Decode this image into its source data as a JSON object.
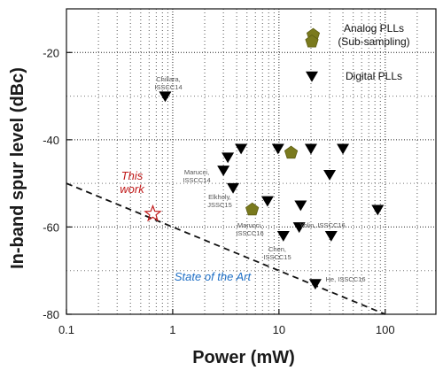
{
  "chart_data": {
    "type": "scatter",
    "title": "",
    "xlabel": "Power (mW)",
    "ylabel": "In-band spur level (dBc)",
    "x_scale": "log",
    "xlim": [
      0.1,
      300
    ],
    "ylim": [
      -80,
      -10
    ],
    "x_ticks": [
      0.1,
      1,
      10,
      100
    ],
    "x_tick_labels": [
      "0.1",
      "1",
      "10",
      "100"
    ],
    "y_ticks": [
      -80,
      -60,
      -40,
      -20
    ],
    "y_tick_labels": [
      "-80",
      "-60",
      "-40",
      "-20"
    ],
    "grid": "dotted, major and minor",
    "legend_position": "top-right",
    "colors": {
      "analog": "#7a7a1e",
      "digital": "#000000",
      "this_work": "#c01818",
      "state_of_art_text": "#1f6fc5"
    },
    "series": [
      {
        "name": "Analog PLLs (Sub-sampling)",
        "marker": "pentagon",
        "points": [
          [
            21,
            -16
          ],
          [
            13,
            -43
          ],
          [
            5.6,
            -56
          ]
        ]
      },
      {
        "name": "Digital PLLs",
        "marker": "triangle-down",
        "points": [
          [
            0.85,
            -30
          ],
          [
            3.0,
            -47
          ],
          [
            3.3,
            -44
          ],
          [
            3.7,
            -51
          ],
          [
            4.4,
            -42
          ],
          [
            7.8,
            -54
          ],
          [
            9.8,
            -42
          ],
          [
            11,
            -62
          ],
          [
            16,
            -55
          ],
          [
            15.5,
            -60
          ],
          [
            20,
            -42
          ],
          [
            30,
            -48
          ],
          [
            31,
            -62
          ],
          [
            22,
            -73
          ],
          [
            40,
            -42
          ],
          [
            85,
            -56
          ]
        ]
      },
      {
        "name": "",
        "marker": "star",
        "points": [
          [
            0.65,
            -57
          ]
        ]
      }
    ],
    "legend": [
      {
        "label_lines": [
          "Analog PLLs",
          "(Sub-sampling)"
        ],
        "marker": "pentagon"
      },
      {
        "label_lines": [
          "Digital PLLs"
        ],
        "marker": "triangle-down"
      }
    ],
    "annotations": {
      "this_work_lines": [
        "This",
        "work"
      ],
      "state_of_art": "State of the Art",
      "point_labels": [
        {
          "text_lines": [
            "Chillara,",
            "ISSCC14"
          ]
        },
        {
          "text_lines": [
            "Marucci,",
            "ISSCC14"
          ]
        },
        {
          "text_lines": [
            "Elkholy,",
            "JSSC15"
          ]
        },
        {
          "text_lines": [
            "Marucci,",
            "ISSCC16"
          ]
        },
        {
          "text_lines": [
            "Chen,",
            "ISSCC15"
          ]
        },
        {
          "text_lines": [
            "Yolin, ISSCC16"
          ]
        },
        {
          "text_lines": [
            "He, ISSCC16"
          ]
        }
      ]
    },
    "trend_line": [
      [
        0.1,
        -50
      ],
      [
        100,
        -80
      ]
    ]
  }
}
